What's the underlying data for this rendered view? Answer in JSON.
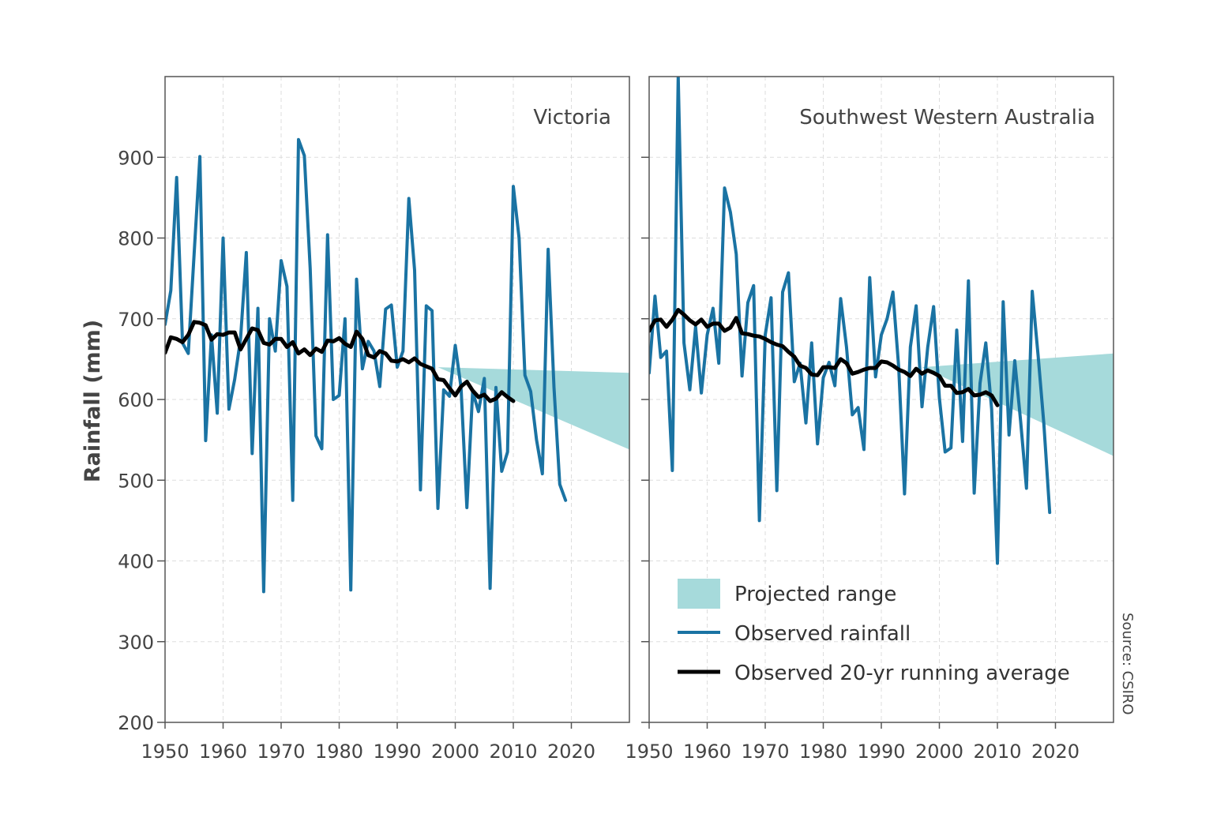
{
  "colors": {
    "observed": "#1a73a3",
    "average": "#000000",
    "projected": "#a6dadb",
    "grid": "#dddddd",
    "frame": "#555555",
    "text": "#444444"
  },
  "source": "Source: CSIRO",
  "legend": {
    "projected_label": "Projected range",
    "observed_label": "Observed rainfall",
    "average_label": "Observed 20-yr running average"
  },
  "chart_data": [
    {
      "type": "line",
      "title": "Victoria",
      "xlabel": "",
      "ylabel": "Rainfall (mm)",
      "xlim": [
        1950,
        2030
      ],
      "ylim": [
        200,
        1000
      ],
      "xticks": [
        1950,
        1960,
        1970,
        1980,
        1990,
        2000,
        2010,
        2020
      ],
      "yticks": [
        200,
        300,
        400,
        500,
        600,
        700,
        800,
        900
      ],
      "grid": true,
      "series": [
        {
          "name": "Observed rainfall",
          "x": [
            1950,
            1951,
            1952,
            1953,
            1954,
            1955,
            1956,
            1957,
            1958,
            1959,
            1960,
            1961,
            1962,
            1963,
            1964,
            1965,
            1966,
            1967,
            1968,
            1969,
            1970,
            1971,
            1972,
            1973,
            1974,
            1975,
            1976,
            1977,
            1978,
            1979,
            1980,
            1981,
            1982,
            1983,
            1984,
            1985,
            1986,
            1987,
            1988,
            1989,
            1990,
            1991,
            1992,
            1993,
            1994,
            1995,
            1996,
            1997,
            1998,
            1999,
            2000,
            2001,
            2002,
            2003,
            2004,
            2005,
            2006,
            2007,
            2008,
            2009,
            2010,
            2011,
            2012,
            2013,
            2014,
            2015,
            2016,
            2017,
            2018,
            2019
          ],
          "values": [
            693,
            735,
            875,
            670,
            657,
            780,
            901,
            549,
            680,
            583,
            800,
            588,
            625,
            675,
            782,
            533,
            713,
            362,
            700,
            660,
            772,
            740,
            475,
            922,
            902,
            762,
            555,
            539,
            804,
            600,
            605,
            700,
            364,
            749,
            638,
            672,
            660,
            616,
            712,
            717,
            640,
            660,
            849,
            760,
            488,
            716,
            710,
            465,
            612,
            604,
            667,
            615,
            466,
            610,
            585,
            626,
            366,
            615,
            511,
            535,
            864,
            800,
            630,
            610,
            550,
            508,
            786,
            615,
            495,
            475
          ]
        },
        {
          "name": "Observed 20-yr running average",
          "x": [
            1950,
            1951,
            1952,
            1953,
            1954,
            1955,
            1956,
            1957,
            1958,
            1959,
            1960,
            1961,
            1962,
            1963,
            1964,
            1965,
            1966,
            1967,
            1968,
            1969,
            1970,
            1971,
            1972,
            1973,
            1974,
            1975,
            1976,
            1977,
            1978,
            1979,
            1980,
            1981,
            1982,
            1983,
            1984,
            1985,
            1986,
            1987,
            1988,
            1989,
            1990,
            1991,
            1992,
            1993,
            1994,
            1995,
            1996,
            1997,
            1998,
            1999,
            2000,
            2001,
            2002,
            2003,
            2004,
            2005,
            2006,
            2007,
            2008,
            2009,
            2010
          ],
          "values": [
            658,
            677,
            675,
            671,
            680,
            696,
            695,
            692,
            674,
            681,
            680,
            683,
            683,
            662,
            675,
            688,
            686,
            670,
            668,
            675,
            675,
            665,
            671,
            657,
            662,
            655,
            663,
            659,
            673,
            672,
            676,
            669,
            665,
            684,
            675,
            655,
            652,
            660,
            657,
            648,
            647,
            650,
            646,
            651,
            644,
            641,
            638,
            625,
            624,
            614,
            605,
            616,
            622,
            611,
            603,
            606,
            598,
            601,
            609,
            603,
            598
          ]
        }
      ],
      "projected_range": {
        "x": [
          1997,
          2030
        ],
        "upper": [
          640,
          633
        ],
        "lower": [
          640,
          538
        ]
      }
    },
    {
      "type": "line",
      "title": "Southwest Western Australia",
      "xlabel": "",
      "ylabel": "",
      "xlim": [
        1950,
        2030
      ],
      "ylim": [
        200,
        1000
      ],
      "xticks": [
        1950,
        1960,
        1970,
        1980,
        1990,
        2000,
        2010,
        2020
      ],
      "yticks": [
        200,
        300,
        400,
        500,
        600,
        700,
        800,
        900
      ],
      "grid": true,
      "series": [
        {
          "name": "Observed rainfall",
          "x": [
            1950,
            1951,
            1952,
            1953,
            1954,
            1955,
            1956,
            1957,
            1958,
            1959,
            1960,
            1961,
            1962,
            1963,
            1964,
            1965,
            1966,
            1967,
            1968,
            1969,
            1970,
            1971,
            1972,
            1973,
            1974,
            1975,
            1976,
            1977,
            1978,
            1979,
            1980,
            1981,
            1982,
            1983,
            1984,
            1985,
            1986,
            1987,
            1988,
            1989,
            1990,
            1991,
            1992,
            1993,
            1994,
            1995,
            1996,
            1997,
            1998,
            1999,
            2000,
            2001,
            2002,
            2003,
            2004,
            2005,
            2006,
            2007,
            2008,
            2009,
            2010,
            2011,
            2012,
            2013,
            2014,
            2015,
            2016,
            2017,
            2018,
            2019
          ],
          "values": [
            633,
            728,
            652,
            660,
            512,
            1000,
            670,
            612,
            690,
            608,
            680,
            713,
            645,
            862,
            832,
            780,
            629,
            720,
            741,
            450,
            680,
            726,
            487,
            733,
            757,
            622,
            645,
            571,
            670,
            545,
            627,
            646,
            617,
            725,
            665,
            581,
            590,
            538,
            751,
            628,
            680,
            700,
            733,
            640,
            483,
            665,
            716,
            591,
            665,
            715,
            602,
            535,
            540,
            686,
            548,
            747,
            484,
            620,
            670,
            588,
            397,
            721,
            556,
            648,
            573,
            490,
            734,
            655,
            570,
            460
          ]
        },
        {
          "name": "Observed 20-yr running average",
          "x": [
            1950,
            1951,
            1952,
            1953,
            1954,
            1955,
            1956,
            1957,
            1958,
            1959,
            1960,
            1961,
            1962,
            1963,
            1964,
            1965,
            1966,
            1967,
            1968,
            1969,
            1970,
            1971,
            1972,
            1973,
            1974,
            1975,
            1976,
            1977,
            1978,
            1979,
            1980,
            1981,
            1982,
            1983,
            1984,
            1985,
            1986,
            1987,
            1988,
            1989,
            1990,
            1991,
            1992,
            1993,
            1994,
            1995,
            1996,
            1997,
            1998,
            1999,
            2000,
            2001,
            2002,
            2003,
            2004,
            2005,
            2006,
            2007,
            2008,
            2009,
            2010
          ],
          "values": [
            685,
            698,
            699,
            690,
            699,
            711,
            705,
            698,
            693,
            699,
            690,
            694,
            694,
            685,
            689,
            701,
            682,
            681,
            679,
            678,
            675,
            671,
            668,
            666,
            659,
            653,
            642,
            639,
            631,
            630,
            640,
            640,
            639,
            650,
            645,
            632,
            634,
            637,
            639,
            639,
            647,
            646,
            642,
            637,
            634,
            629,
            638,
            632,
            636,
            633,
            629,
            617,
            617,
            608,
            609,
            613,
            605,
            606,
            609,
            605,
            593
          ]
        }
      ],
      "projected_range": {
        "x": [
          1997,
          2030
        ],
        "upper": [
          640,
          657
        ],
        "lower": [
          640,
          530
        ]
      }
    }
  ]
}
